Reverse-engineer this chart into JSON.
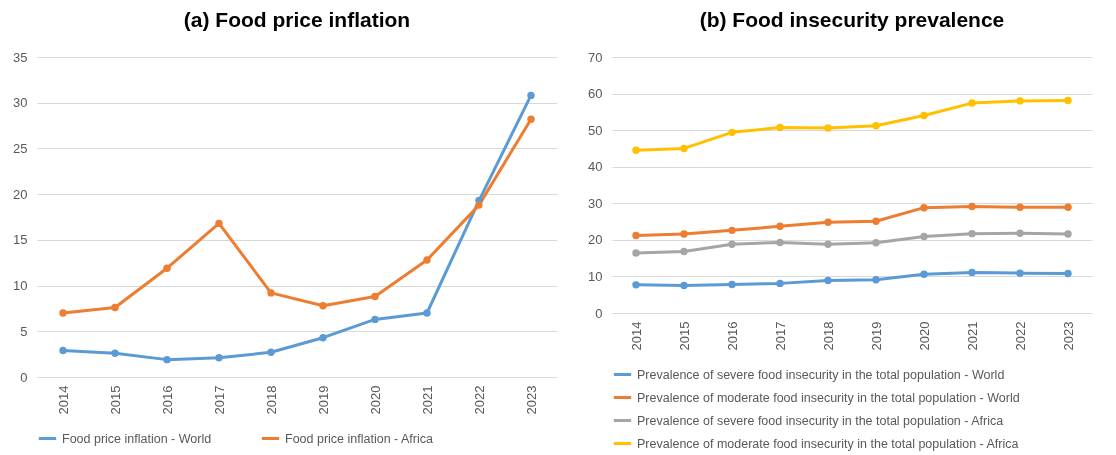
{
  "chart_data": [
    {
      "type": "line",
      "title": "(a)   Food price inflation",
      "categories": [
        "2014",
        "2015",
        "2016",
        "2017",
        "2018",
        "2019",
        "2020",
        "2021",
        "2022",
        "2023"
      ],
      "series": [
        {
          "name": "Food price inflation -  World",
          "color": "#5b9bd5",
          "values": [
            2.9,
            2.6,
            1.9,
            2.1,
            2.7,
            4.3,
            6.3,
            7.0,
            19.3,
            30.8
          ]
        },
        {
          "name": "Food price inflation - Africa",
          "color": "#ed7d31",
          "values": [
            7.0,
            7.6,
            11.9,
            16.8,
            9.2,
            7.8,
            8.8,
            12.8,
            18.8,
            28.2
          ]
        }
      ],
      "ylim": [
        0,
        35
      ],
      "yticks": [
        0,
        5,
        10,
        15,
        20,
        25,
        30,
        35
      ],
      "grid": "y",
      "legend": "bottom",
      "marker": "circle",
      "line_style": "solid"
    },
    {
      "type": "line",
      "title": "(b)   Food insecurity prevalence",
      "categories": [
        "2014",
        "2015",
        "2016",
        "2017",
        "2018",
        "2019",
        "2020",
        "2021",
        "2022",
        "2023"
      ],
      "series": [
        {
          "name": "Prevalence of severe food insecurity in the total population - World",
          "color": "#5b9bd5",
          "values": [
            7.7,
            7.5,
            7.8,
            8.1,
            8.9,
            9.1,
            10.6,
            11.1,
            10.9,
            10.8
          ]
        },
        {
          "name": "Prevalence of moderate food insecurity in the total population - World",
          "color": "#ed7d31",
          "values": [
            21.2,
            21.6,
            22.6,
            23.7,
            24.8,
            25.1,
            28.8,
            29.1,
            28.9,
            28.9
          ]
        },
        {
          "name": "Prevalence of severe food insecurity in the total population - Africa",
          "color": "#a5a5a5",
          "values": [
            16.4,
            16.8,
            18.8,
            19.3,
            18.8,
            19.2,
            20.9,
            21.7,
            21.8,
            21.6
          ]
        },
        {
          "name": "Prevalence of moderate food insecurity in the total population - Africa",
          "color": "#ffc000",
          "values": [
            44.5,
            45.0,
            49.4,
            50.7,
            50.6,
            51.2,
            54.0,
            57.4,
            58.0,
            58.1
          ]
        }
      ],
      "ylim": [
        0,
        70
      ],
      "yticks": [
        0,
        10,
        20,
        30,
        40,
        50,
        60,
        70
      ],
      "grid": "y",
      "legend": "bottom",
      "marker": "circle",
      "line_style": "solid"
    }
  ]
}
